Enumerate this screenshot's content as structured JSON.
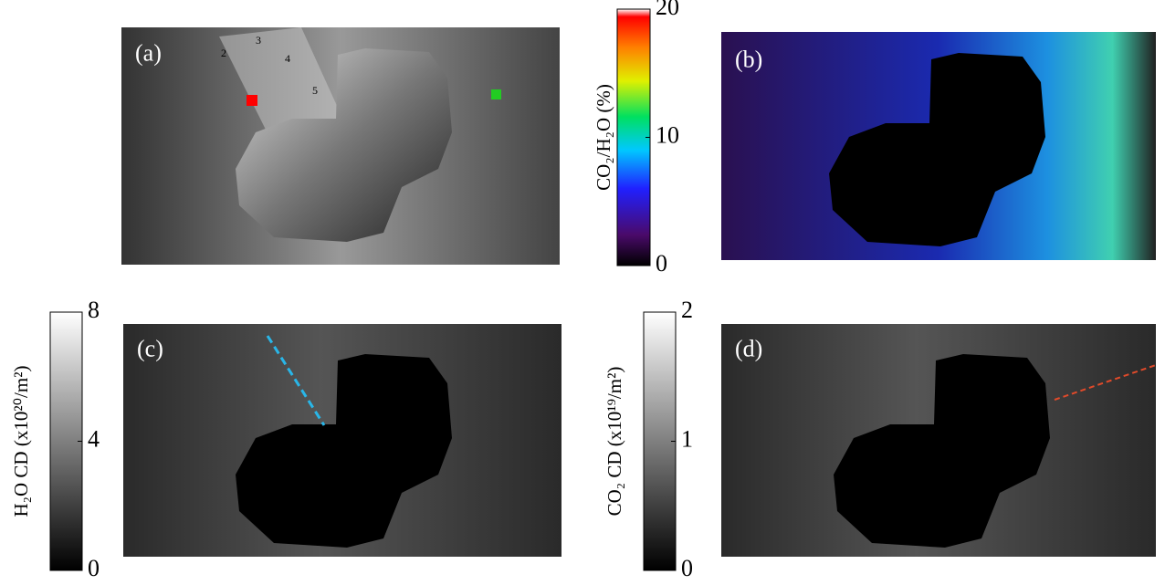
{
  "panels": [
    {
      "label": "(a)",
      "contour_labels": [
        2,
        3,
        4,
        5
      ]
    },
    {
      "label": "(b)",
      "colorbar": {
        "label": "CO₂/H₂O (%)",
        "colormap": "jet",
        "lim": [
          0,
          20
        ],
        "ticks": [
          0,
          10,
          20
        ]
      }
    },
    {
      "label": "(c)",
      "colorbar": {
        "label": "H₂O CD (x10²⁰/m²)",
        "colormap": "gray",
        "lim": [
          0,
          8
        ],
        "ticks": [
          0,
          4,
          8
        ]
      }
    },
    {
      "label": "(d)",
      "colorbar": {
        "label": "CO₂ CD (x10¹⁹/m²)",
        "colormap": "gray",
        "lim": [
          0,
          2
        ],
        "ticks": [
          0,
          1,
          2
        ]
      }
    }
  ]
}
